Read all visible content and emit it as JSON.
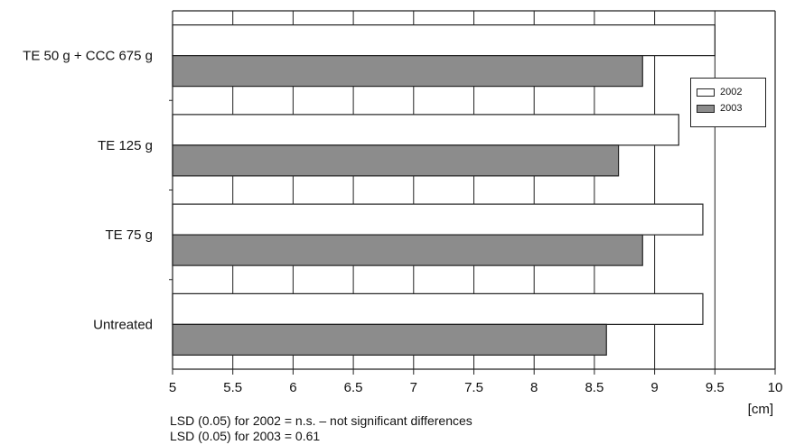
{
  "chart_data": {
    "type": "bar",
    "orientation": "horizontal",
    "categories": [
      "TE 50 g + CCC 675 g",
      "TE 125 g",
      "TE 75 g",
      "Untreated"
    ],
    "series": [
      {
        "name": "2002",
        "values": [
          9.5,
          9.2,
          9.4,
          9.4
        ],
        "color": "#ffffff"
      },
      {
        "name": "2003",
        "values": [
          8.9,
          8.7,
          8.9,
          8.6
        ],
        "color": "#8c8c8c"
      }
    ],
    "xlim": [
      5,
      10
    ],
    "xticks": [
      "5",
      "5.5",
      "6",
      "6.5",
      "7",
      "7.5",
      "8",
      "8.5",
      "9",
      "9.5",
      "10"
    ],
    "xunit": "[cm]",
    "grid": "vertical",
    "legend_position": "right",
    "notes": [
      "LSD (0.05) for 2002 = n.s. – not significant differences",
      "LSD (0.05) for 2003 = 0.61"
    ]
  }
}
